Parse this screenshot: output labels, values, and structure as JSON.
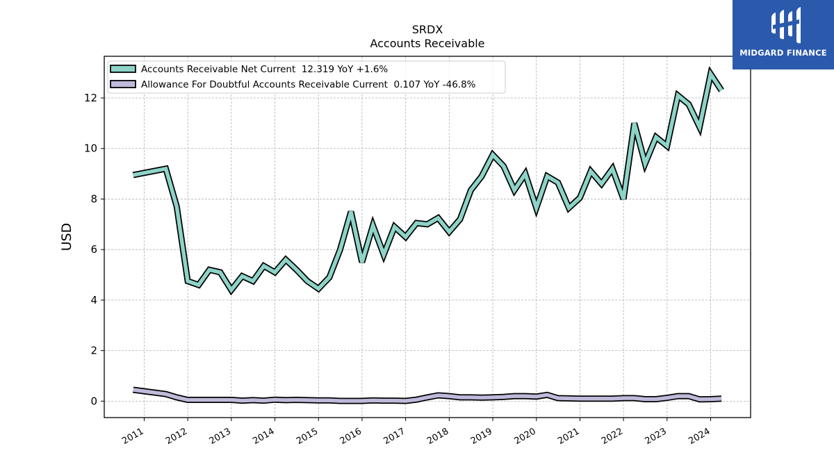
{
  "chart_data": {
    "type": "line",
    "title": "SRDX",
    "subtitle": "Accounts Receivable",
    "ylabel": "USD",
    "xlabel": "",
    "ylim": [
      -0.65,
      13.65
    ],
    "xlim": [
      2010.0833,
      2024.9167
    ],
    "yticks": [
      0,
      2,
      4,
      6,
      8,
      10,
      12
    ],
    "xticks": [
      "2011",
      "2012",
      "2013",
      "2014",
      "2015",
      "2016",
      "2017",
      "2018",
      "2019",
      "2020",
      "2021",
      "2022",
      "2023",
      "2024"
    ],
    "grid": true,
    "legend_position": "top-left",
    "series": [
      {
        "name": "Accounts Receivable Net Current  12.319 YoY +1.6%",
        "color": "#8dd3c7",
        "points": [
          [
            "2010-09-30",
            8.95
          ],
          [
            "2011-06-30",
            9.2
          ],
          [
            "2011-09-30",
            7.7
          ],
          [
            "2011-12-31",
            4.75
          ],
          [
            "2012-03-31",
            4.6
          ],
          [
            "2012-06-30",
            5.2
          ],
          [
            "2012-09-30",
            5.1
          ],
          [
            "2012-12-31",
            4.4
          ],
          [
            "2013-03-31",
            4.95
          ],
          [
            "2013-06-30",
            4.75
          ],
          [
            "2013-09-30",
            5.35
          ],
          [
            "2013-12-31",
            5.1
          ],
          [
            "2014-03-31",
            5.6
          ],
          [
            "2014-06-30",
            5.2
          ],
          [
            "2014-09-30",
            4.75
          ],
          [
            "2014-12-31",
            4.45
          ],
          [
            "2015-03-31",
            4.9
          ],
          [
            "2015-06-30",
            6.0
          ],
          [
            "2015-09-30",
            7.5
          ],
          [
            "2015-12-31",
            5.5
          ],
          [
            "2016-03-31",
            6.95
          ],
          [
            "2016-06-30",
            5.8
          ],
          [
            "2016-09-30",
            6.9
          ],
          [
            "2016-12-31",
            6.5
          ],
          [
            "2017-03-31",
            7.05
          ],
          [
            "2017-06-30",
            7.0
          ],
          [
            "2017-09-30",
            7.25
          ],
          [
            "2017-12-31",
            6.7
          ],
          [
            "2018-03-31",
            7.2
          ],
          [
            "2018-06-30",
            8.35
          ],
          [
            "2018-09-30",
            8.9
          ],
          [
            "2018-12-31",
            9.75
          ],
          [
            "2019-03-31",
            9.3
          ],
          [
            "2019-06-30",
            8.35
          ],
          [
            "2019-09-30",
            9.0
          ],
          [
            "2019-12-31",
            7.65
          ],
          [
            "2020-03-31",
            8.9
          ],
          [
            "2020-06-30",
            8.65
          ],
          [
            "2020-09-30",
            7.65
          ],
          [
            "2020-12-31",
            8.05
          ],
          [
            "2021-03-31",
            9.1
          ],
          [
            "2021-06-30",
            8.6
          ],
          [
            "2021-09-30",
            9.2
          ],
          [
            "2021-12-31",
            8.0
          ],
          [
            "2022-03-31",
            11.0
          ],
          [
            "2022-06-30",
            9.4
          ],
          [
            "2022-09-30",
            10.45
          ],
          [
            "2022-12-31",
            10.1
          ],
          [
            "2023-03-31",
            12.1
          ],
          [
            "2023-06-30",
            11.75
          ],
          [
            "2023-09-30",
            10.85
          ],
          [
            "2023-12-31",
            12.95
          ],
          [
            "2024-03-31",
            12.3
          ]
        ]
      },
      {
        "name": "Allowance For Doubtful Accounts Receivable Current  0.107 YoY -46.8%",
        "color": "#bebada",
        "points": [
          [
            "2010-09-30",
            0.45
          ],
          [
            "2011-06-30",
            0.28
          ],
          [
            "2011-09-30",
            0.15
          ],
          [
            "2011-12-31",
            0.05
          ],
          [
            "2012-03-31",
            0.05
          ],
          [
            "2012-06-30",
            0.05
          ],
          [
            "2012-09-30",
            0.05
          ],
          [
            "2012-12-31",
            0.05
          ],
          [
            "2013-03-31",
            0.02
          ],
          [
            "2013-06-30",
            0.04
          ],
          [
            "2013-09-30",
            0.02
          ],
          [
            "2013-12-31",
            0.06
          ],
          [
            "2014-03-31",
            0.04
          ],
          [
            "2014-06-30",
            0.05
          ],
          [
            "2014-09-30",
            0.04
          ],
          [
            "2014-12-31",
            0.03
          ],
          [
            "2015-03-31",
            0.03
          ],
          [
            "2015-06-30",
            0.01
          ],
          [
            "2015-09-30",
            0.01
          ],
          [
            "2015-12-31",
            0.01
          ],
          [
            "2016-03-31",
            0.03
          ],
          [
            "2016-06-30",
            0.02
          ],
          [
            "2016-09-30",
            0.02
          ],
          [
            "2016-12-31",
            0.01
          ],
          [
            "2017-03-31",
            0.06
          ],
          [
            "2017-06-30",
            0.15
          ],
          [
            "2017-09-30",
            0.23
          ],
          [
            "2017-12-31",
            0.2
          ],
          [
            "2018-03-31",
            0.15
          ],
          [
            "2018-06-30",
            0.15
          ],
          [
            "2018-09-30",
            0.14
          ],
          [
            "2018-12-31",
            0.15
          ],
          [
            "2019-03-31",
            0.17
          ],
          [
            "2019-06-30",
            0.2
          ],
          [
            "2019-09-30",
            0.2
          ],
          [
            "2019-12-31",
            0.18
          ],
          [
            "2020-03-31",
            0.25
          ],
          [
            "2020-06-30",
            0.12
          ],
          [
            "2020-09-30",
            0.11
          ],
          [
            "2020-12-31",
            0.1
          ],
          [
            "2021-03-31",
            0.1
          ],
          [
            "2021-06-30",
            0.1
          ],
          [
            "2021-09-30",
            0.1
          ],
          [
            "2021-12-31",
            0.12
          ],
          [
            "2022-03-31",
            0.12
          ],
          [
            "2022-06-30",
            0.08
          ],
          [
            "2022-09-30",
            0.08
          ],
          [
            "2022-12-31",
            0.13
          ],
          [
            "2023-03-31",
            0.2
          ],
          [
            "2023-06-30",
            0.2
          ],
          [
            "2023-09-30",
            0.07
          ],
          [
            "2023-12-31",
            0.08
          ],
          [
            "2024-03-31",
            0.1
          ]
        ]
      }
    ]
  },
  "logo": {
    "text": "MIDGARD FINANCE",
    "background": "#2b5aad"
  }
}
